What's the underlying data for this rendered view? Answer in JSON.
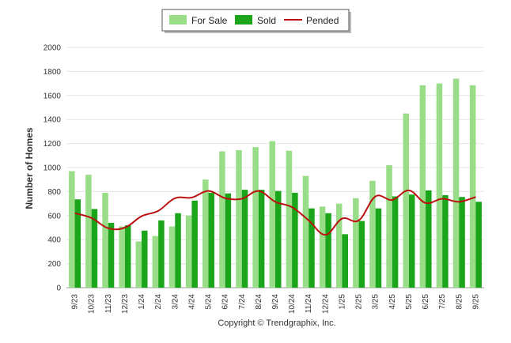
{
  "chart_data": {
    "type": "bar",
    "ylabel": "Number of Homes",
    "ylim": [
      0,
      2000
    ],
    "yticks": [
      "0",
      "200",
      "400",
      "600",
      "800",
      "1000",
      "1200",
      "1400",
      "1600",
      "1800",
      "2000"
    ],
    "categories": [
      "9/23",
      "10/23",
      "11/23",
      "12/23",
      "1/24",
      "2/24",
      "3/24",
      "4/24",
      "5/24",
      "6/24",
      "7/24",
      "8/24",
      "9/24",
      "10/24",
      "11/24",
      "12/24",
      "1/25",
      "2/25",
      "3/25",
      "4/25",
      "5/25",
      "6/25",
      "7/25",
      "8/25",
      "9/25"
    ],
    "series": [
      {
        "name": "For Sale",
        "kind": "bar",
        "color": "#99dd88",
        "values": [
          970,
          940,
          790,
          510,
          385,
          430,
          510,
          600,
          900,
          1135,
          1145,
          1170,
          1220,
          1140,
          930,
          675,
          700,
          745,
          890,
          1020,
          1450,
          1685,
          1700,
          1740,
          1685
        ]
      },
      {
        "name": "Sold",
        "kind": "bar",
        "color": "#1aa51a",
        "values": [
          735,
          655,
          540,
          520,
          475,
          560,
          620,
          725,
          790,
          785,
          815,
          815,
          805,
          790,
          660,
          620,
          445,
          555,
          660,
          760,
          775,
          810,
          770,
          755,
          715
        ]
      },
      {
        "name": "Pended",
        "kind": "line",
        "color": "#bb1111",
        "values": [
          620,
          580,
          495,
          500,
          595,
          640,
          745,
          750,
          805,
          745,
          740,
          805,
          715,
          670,
          560,
          440,
          575,
          560,
          760,
          730,
          810,
          705,
          740,
          715,
          755
        ]
      }
    ],
    "legend_position": "top-center",
    "grid": true
  },
  "footer": {
    "copyright": "Copyright © Trendgraphix, Inc."
  }
}
